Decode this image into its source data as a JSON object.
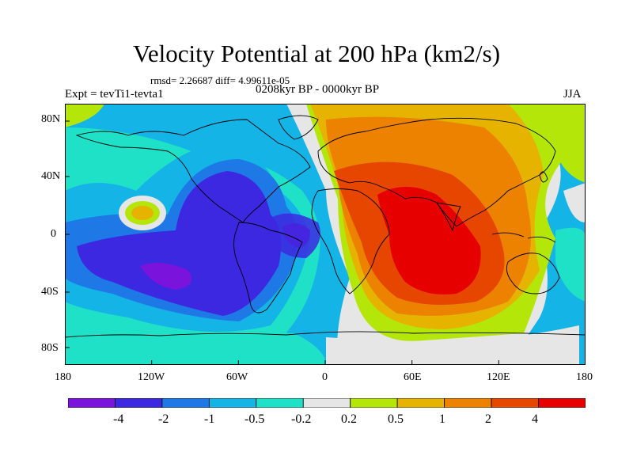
{
  "title": "Velocity Potential at 200 hPa (km2/s)",
  "stats": "rmsd= 2.26687 diff= 4.99611e-05",
  "experiment": "Expt = tevTi1-tevta1",
  "period": "0208kyr BP - 0000kyr BP",
  "season": "JJA",
  "lat_labels": [
    "80N",
    "40N",
    "0",
    "40S",
    "80S"
  ],
  "lon_labels": [
    "180",
    "120W",
    "60W",
    "0",
    "60E",
    "120E",
    "180"
  ],
  "colorbar": {
    "labels": [
      "-4",
      "-2",
      "-1",
      "-0.5",
      "-0.2",
      "0.2",
      "0.5",
      "1",
      "2",
      "4"
    ],
    "colors": [
      "#7a14dc",
      "#3c28e0",
      "#1e78e6",
      "#14b4e6",
      "#1ee1c8",
      "#e6e6e6",
      "#b4e60a",
      "#e6b400",
      "#ec8200",
      "#e64600",
      "#e60000"
    ]
  }
}
